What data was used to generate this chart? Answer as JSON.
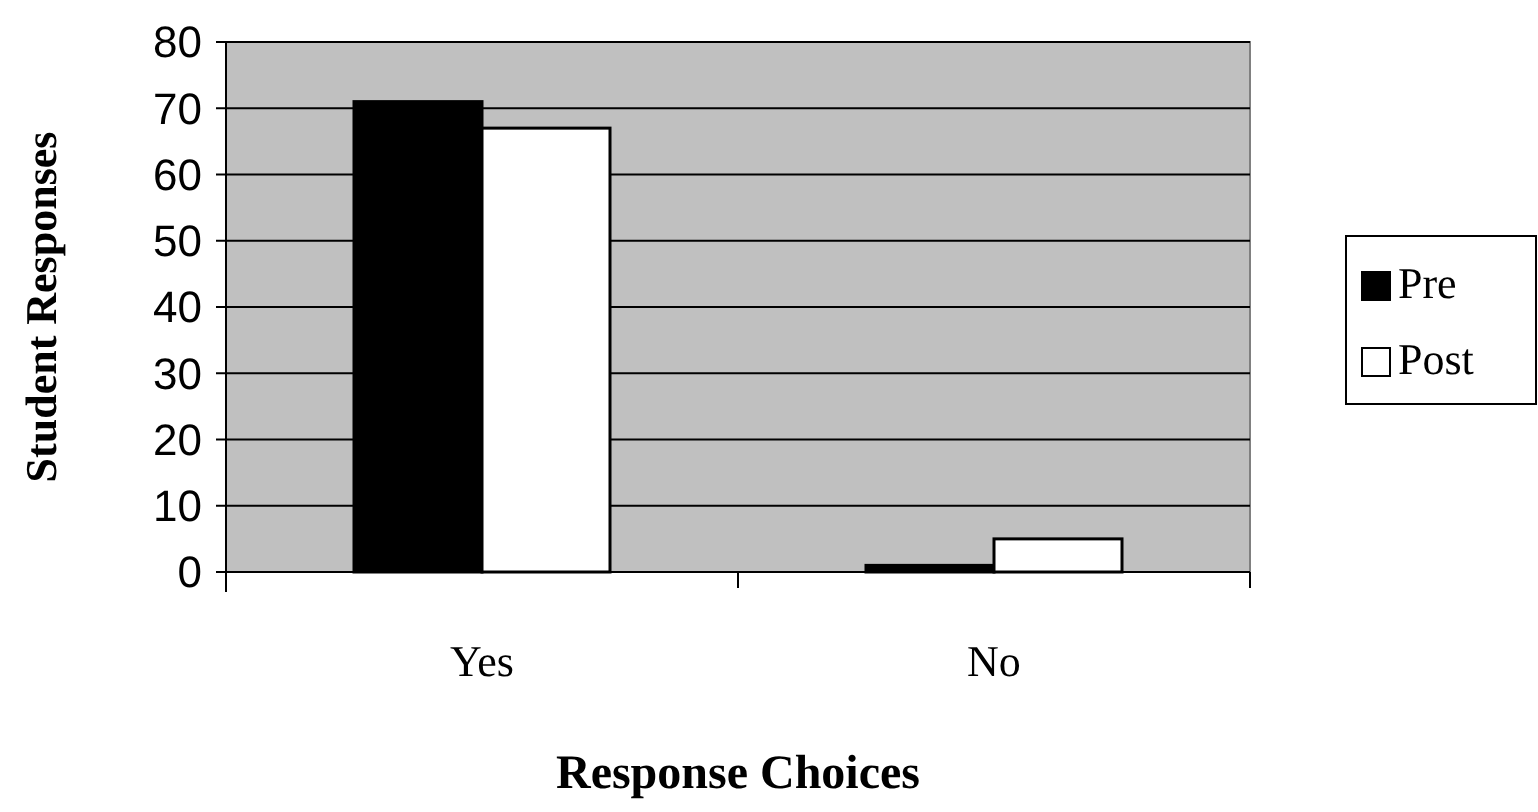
{
  "chart_data": {
    "type": "bar",
    "xlabel": "Response Choices",
    "ylabel": "Student Responses",
    "categories": [
      "Yes",
      "No"
    ],
    "series": [
      {
        "name": "Pre",
        "color": "#000000",
        "values": [
          71,
          1
        ]
      },
      {
        "name": "Post",
        "color": "#ffffff",
        "values": [
          67,
          5
        ]
      }
    ],
    "ylim": [
      0,
      80
    ],
    "yticks": [
      0,
      10,
      20,
      30,
      40,
      50,
      60,
      70,
      80
    ],
    "grid": "y",
    "legend": "right"
  }
}
